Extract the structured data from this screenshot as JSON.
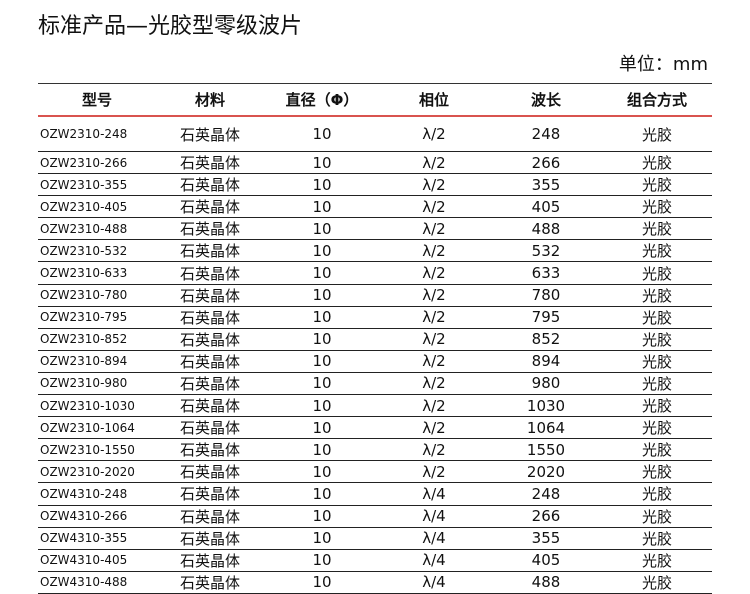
{
  "header": {
    "title": "标准产品—光胶型零级波片",
    "unit": "单位：mm"
  },
  "table": {
    "columns": [
      "型号",
      "材料",
      "直径（Φ）",
      "相位",
      "波长",
      "组合方式"
    ],
    "rows": [
      [
        "OZW2310-248",
        "石英晶体",
        10,
        "λ/2",
        248,
        "光胶"
      ],
      [
        "OZW2310-266",
        "石英晶体",
        10,
        "λ/2",
        266,
        "光胶"
      ],
      [
        "OZW2310-355",
        "石英晶体",
        10,
        "λ/2",
        355,
        "光胶"
      ],
      [
        "OZW2310-405",
        "石英晶体",
        10,
        "λ/2",
        405,
        "光胶"
      ],
      [
        "OZW2310-488",
        "石英晶体",
        10,
        "λ/2",
        488,
        "光胶"
      ],
      [
        "OZW2310-532",
        "石英晶体",
        10,
        "λ/2",
        532,
        "光胶"
      ],
      [
        "OZW2310-633",
        "石英晶体",
        10,
        "λ/2",
        633,
        "光胶"
      ],
      [
        "OZW2310-780",
        "石英晶体",
        10,
        "λ/2",
        780,
        "光胶"
      ],
      [
        "OZW2310-795",
        "石英晶体",
        10,
        "λ/2",
        795,
        "光胶"
      ],
      [
        "OZW2310-852",
        "石英晶体",
        10,
        "λ/2",
        852,
        "光胶"
      ],
      [
        "OZW2310-894",
        "石英晶体",
        10,
        "λ/2",
        894,
        "光胶"
      ],
      [
        "OZW2310-980",
        "石英晶体",
        10,
        "λ/2",
        980,
        "光胶"
      ],
      [
        "OZW2310-1030",
        "石英晶体",
        10,
        "λ/2",
        1030,
        "光胶"
      ],
      [
        "OZW2310-1064",
        "石英晶体",
        10,
        "λ/2",
        1064,
        "光胶"
      ],
      [
        "OZW2310-1550",
        "石英晶体",
        10,
        "λ/2",
        1550,
        "光胶"
      ],
      [
        "OZW2310-2020",
        "石英晶体",
        10,
        "λ/2",
        2020,
        "光胶"
      ],
      [
        "OZW4310-248",
        "石英晶体",
        10,
        "λ/4",
        248,
        "光胶"
      ],
      [
        "OZW4310-266",
        "石英晶体",
        10,
        "λ/4",
        266,
        "光胶"
      ],
      [
        "OZW4310-355",
        "石英晶体",
        10,
        "λ/4",
        355,
        "光胶"
      ],
      [
        "OZW4310-405",
        "石英晶体",
        10,
        "λ/4",
        405,
        "光胶"
      ],
      [
        "OZW4310-488",
        "石英晶体",
        10,
        "λ/4",
        488,
        "光胶"
      ]
    ]
  }
}
